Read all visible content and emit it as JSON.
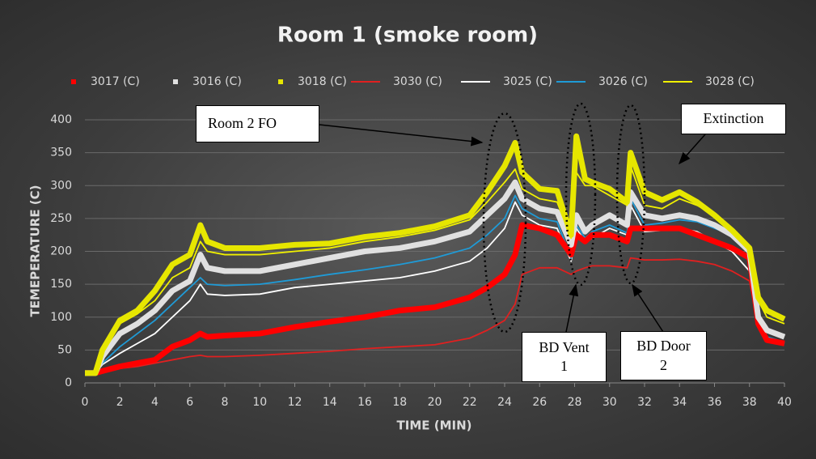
{
  "chart_data": {
    "type": "line",
    "title": "Room 1 (smoke room)",
    "x_label": "TIME (MIN)",
    "y_label": "TEMEPERATURE (C)",
    "x": [
      0,
      0.6,
      1,
      2,
      3,
      4,
      5,
      6,
      6.6,
      7,
      8,
      10,
      12,
      14,
      16,
      18,
      20,
      22,
      23,
      24,
      24.6,
      25,
      26,
      27,
      27.8,
      28.1,
      28.6,
      29,
      30,
      31,
      31.2,
      32,
      33,
      34,
      35,
      36,
      37,
      38,
      38.5,
      39,
      40
    ],
    "xlim": [
      0,
      40
    ],
    "xticks": [
      0,
      2,
      4,
      6,
      8,
      10,
      12,
      14,
      16,
      18,
      20,
      22,
      24,
      26,
      28,
      30,
      32,
      34,
      36,
      38,
      40
    ],
    "ylim": [
      0,
      400
    ],
    "yticks": [
      0,
      50,
      100,
      150,
      200,
      250,
      300,
      350,
      400
    ],
    "grid": true,
    "series": [
      {
        "name": "3017 (C)",
        "color": "#ff0000",
        "style": "marker",
        "values": [
          15,
          15,
          18,
          25,
          30,
          35,
          55,
          65,
          75,
          70,
          72,
          75,
          85,
          93,
          100,
          110,
          115,
          130,
          145,
          165,
          195,
          240,
          235,
          225,
          195,
          225,
          215,
          225,
          225,
          215,
          235,
          235,
          235,
          235,
          225,
          215,
          205,
          190,
          90,
          65,
          60
        ]
      },
      {
        "name": "3016 (C)",
        "color": "#e0e0e0",
        "style": "marker",
        "values": [
          15,
          15,
          40,
          75,
          90,
          110,
          140,
          155,
          195,
          175,
          170,
          170,
          180,
          190,
          200,
          205,
          215,
          230,
          255,
          280,
          305,
          280,
          265,
          260,
          210,
          255,
          230,
          240,
          255,
          240,
          290,
          255,
          250,
          255,
          250,
          240,
          225,
          200,
          100,
          80,
          70
        ]
      },
      {
        "name": "3018 (C)",
        "color": "#e6e600",
        "style": "marker",
        "values": [
          15,
          15,
          50,
          95,
          110,
          140,
          180,
          195,
          240,
          215,
          205,
          205,
          210,
          212,
          222,
          228,
          238,
          255,
          290,
          330,
          365,
          320,
          295,
          292,
          225,
          375,
          310,
          305,
          295,
          275,
          350,
          290,
          278,
          290,
          275,
          255,
          232,
          205,
          130,
          110,
          97
        ]
      },
      {
        "name": "3030 (C)",
        "color": "#e02020",
        "style": "line",
        "values": [
          15,
          15,
          18,
          22,
          25,
          30,
          35,
          40,
          42,
          40,
          40,
          42,
          45,
          48,
          52,
          55,
          58,
          68,
          80,
          95,
          120,
          165,
          175,
          175,
          165,
          170,
          175,
          178,
          178,
          175,
          190,
          187,
          187,
          188,
          185,
          180,
          170,
          155,
          85,
          65,
          60
        ]
      },
      {
        "name": "3025 (C)",
        "color": "#ffffff",
        "style": "line",
        "values": [
          15,
          15,
          28,
          45,
          60,
          75,
          100,
          125,
          150,
          135,
          133,
          135,
          145,
          150,
          155,
          160,
          170,
          185,
          205,
          235,
          275,
          255,
          240,
          235,
          185,
          235,
          215,
          220,
          235,
          225,
          270,
          230,
          232,
          235,
          230,
          215,
          200,
          170,
          85,
          65,
          60
        ]
      },
      {
        "name": "3026 (C)",
        "color": "#1f9bd7",
        "style": "line",
        "values": [
          15,
          15,
          30,
          55,
          75,
          95,
          120,
          145,
          160,
          150,
          148,
          150,
          157,
          165,
          172,
          180,
          190,
          205,
          225,
          250,
          285,
          265,
          250,
          245,
          190,
          240,
          220,
          230,
          240,
          228,
          280,
          240,
          243,
          248,
          245,
          235,
          225,
          195,
          90,
          70,
          62
        ]
      },
      {
        "name": "3028 (C)",
        "color": "#f0f000",
        "style": "line",
        "values": [
          15,
          15,
          45,
          90,
          105,
          125,
          160,
          175,
          215,
          200,
          195,
          195,
          200,
          205,
          215,
          222,
          232,
          248,
          275,
          305,
          325,
          295,
          280,
          275,
          220,
          320,
          300,
          300,
          285,
          270,
          330,
          270,
          265,
          280,
          270,
          255,
          230,
          205,
          125,
          100,
          90
        ]
      }
    ],
    "annotations": [
      "Room 2 FO",
      "Extinction",
      "BD Vent 1",
      "BD Door 2"
    ]
  }
}
